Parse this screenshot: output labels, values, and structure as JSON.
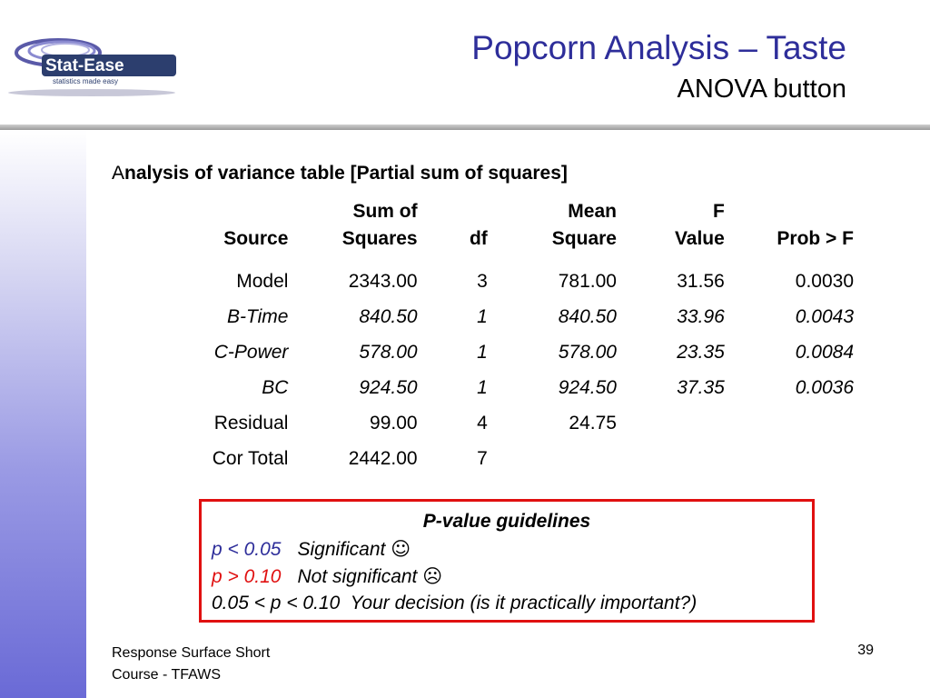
{
  "header": {
    "title": "Popcorn Analysis – Taste",
    "subtitle": "ANOVA button",
    "logo_text": "Stat-Ease",
    "logo_tagline": "statistics made easy"
  },
  "table": {
    "title_first": "A",
    "title_rest": "nalysis of variance table [Partial sum of squares]",
    "headers": {
      "source": "Source",
      "ss_top": "Sum of",
      "ss_bottom": "Squares",
      "df": "df",
      "ms_top": "Mean",
      "ms_bottom": "Square",
      "f_top": "F",
      "f_bottom": "Value",
      "p": "Prob > F"
    },
    "rows": [
      {
        "source": "Model",
        "ss": "2343.00",
        "df": "3",
        "ms": "781.00",
        "f": "31.56",
        "p": "0.0030"
      },
      {
        "source": "B-Time",
        "ss": "840.50",
        "df": "1",
        "ms": "840.50",
        "f": "33.96",
        "p": "0.0043"
      },
      {
        "source": "C-Power",
        "ss": "578.00",
        "df": "1",
        "ms": "578.00",
        "f": "23.35",
        "p": "0.0084"
      },
      {
        "source": "BC",
        "ss": "924.50",
        "df": "1",
        "ms": "924.50",
        "f": "37.35",
        "p": "0.0036"
      },
      {
        "source": "Residual",
        "ss": "99.00",
        "df": "4",
        "ms": "24.75",
        "f": "",
        "p": ""
      },
      {
        "source": "Cor Total",
        "ss": "2442.00",
        "df": "7",
        "ms": "",
        "f": "",
        "p": ""
      }
    ]
  },
  "guidelines": {
    "title": "P-value guidelines",
    "line1_p": "p < 0.05",
    "line1_text": "Significant",
    "line1_icon": "☺",
    "line2_p": "p > 0.10",
    "line2_text": "Not significant",
    "line2_icon": "☹",
    "line3_text": "0.05 < p < 0.10  Your decision (is it practically important?)"
  },
  "footer": {
    "line1": "Response Surface Short",
    "line2": "Course - TFAWS",
    "page": "39"
  },
  "colors": {
    "title_blue": "#2e2e9a",
    "box_red": "#e01010"
  }
}
